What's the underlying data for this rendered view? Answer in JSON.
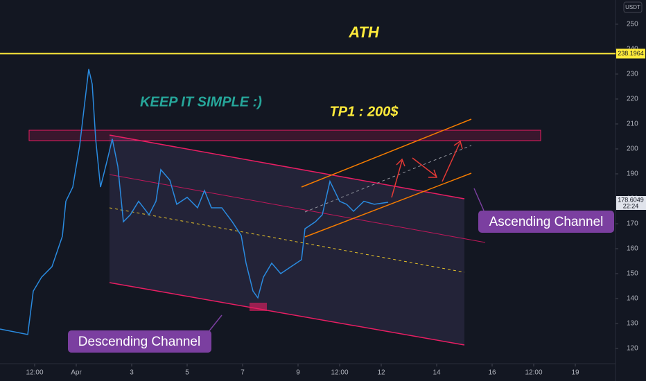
{
  "chart_data": {
    "type": "line",
    "annotations": {
      "ath": "ATH",
      "motto": "KEEP IT SIMPLE :)",
      "target": "TP1 : 200$",
      "ascending": "Ascending Channel",
      "descending": "Descending Channel"
    },
    "currency": "USDT",
    "x": [
      -1.75,
      -0.75,
      -0.55,
      -0.25,
      0.125,
      0.5,
      0.625,
      0.875,
      1.125,
      1.3,
      1.45,
      1.575,
      1.7,
      1.875,
      2.125,
      2.3,
      2.5,
      2.7,
      2.95,
      3.25,
      3.625,
      3.875,
      4.05,
      4.375,
      4.625,
      5,
      5.375,
      5.625,
      5.875,
      6.25,
      6.625,
      6.95,
      7.125,
      7.375,
      7.55,
      7.75,
      8.05,
      8.375,
      8.75,
      9.125,
      9.25,
      9.625,
      9.875,
      10.15,
      10.5,
      10.75,
      11,
      11.375,
      11.75,
      12.25
    ],
    "series": [
      {
        "color": "#2a8be0",
        "values": [
          127.8,
          125.6,
          143,
          148.6,
          152.8,
          165,
          179,
          184.7,
          201.4,
          218,
          232,
          226,
          204,
          184.7,
          195.8,
          204,
          193,
          170.8,
          173.6,
          179,
          173.6,
          179,
          191.7,
          187.5,
          177.8,
          180.6,
          176.4,
          183.3,
          176.4,
          176.4,
          170.8,
          165.3,
          154.2,
          143,
          140.3,
          148.6,
          154.2,
          150,
          152.8,
          155.6,
          168,
          170.8,
          173.6,
          187,
          179,
          177.8,
          175,
          179,
          177.8,
          178.6
        ]
      }
    ],
    "ath": 238.1964,
    "last_price": 178.6049,
    "last_time": "22:24",
    "xlim": [
      -1.75,
      20.45
    ],
    "ylim": [
      113.9,
      259.7
    ],
    "xticks": [
      {
        "value": -0.5,
        "label": "12:00"
      },
      {
        "value": 1,
        "label": "Apr"
      },
      3,
      5,
      7,
      9,
      {
        "value": 10.5,
        "label": "12:00"
      },
      12,
      14,
      16,
      {
        "value": 17.5,
        "label": "12:00"
      },
      19
    ],
    "yticks": [
      120,
      130,
      140,
      150,
      160,
      170,
      180,
      190,
      200,
      210,
      220,
      230,
      240,
      250
    ]
  }
}
